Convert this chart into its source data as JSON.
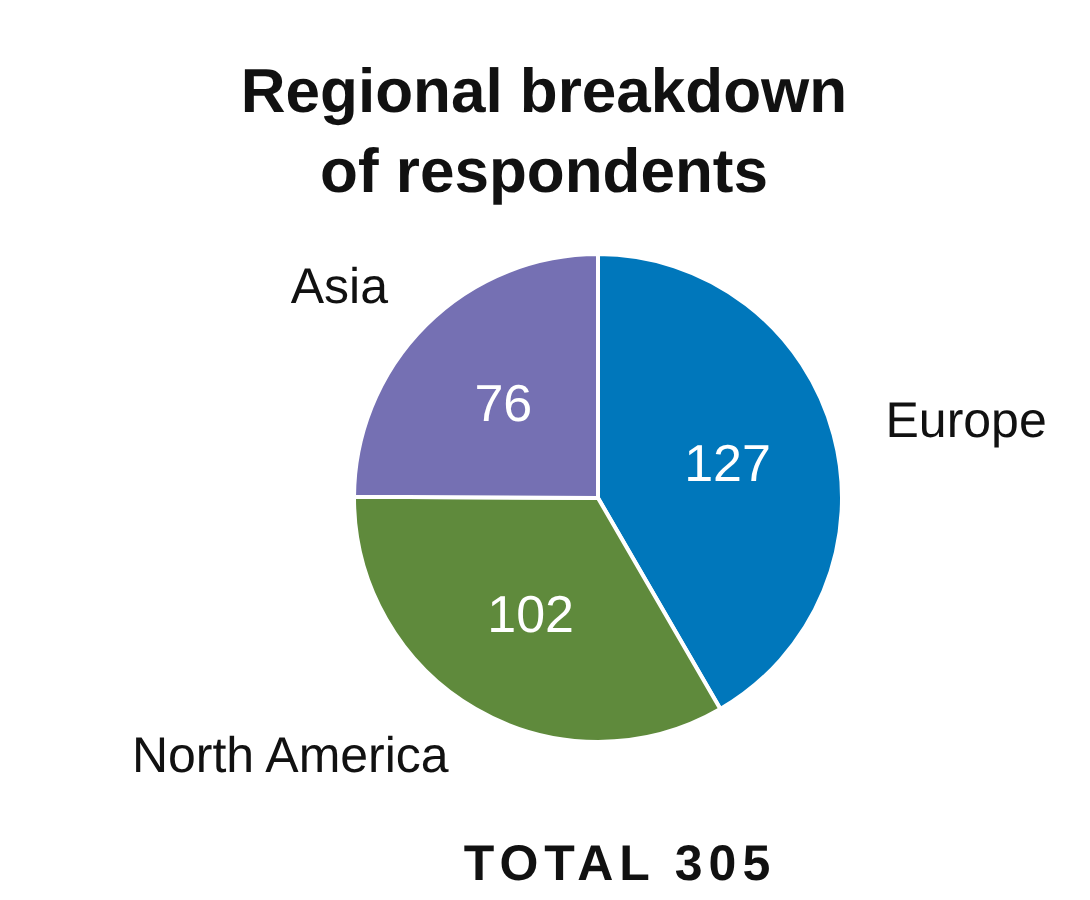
{
  "chart_data": {
    "type": "pie",
    "title": "Regional breakdown of respondents",
    "categories": [
      "Europe",
      "North America",
      "Asia"
    ],
    "values": [
      127,
      102,
      76
    ],
    "colors": [
      "#0077bb",
      "#5f8a3c",
      "#7570b3"
    ],
    "data_labels": true,
    "annotations": [
      "TOTAL 305"
    ]
  }
}
